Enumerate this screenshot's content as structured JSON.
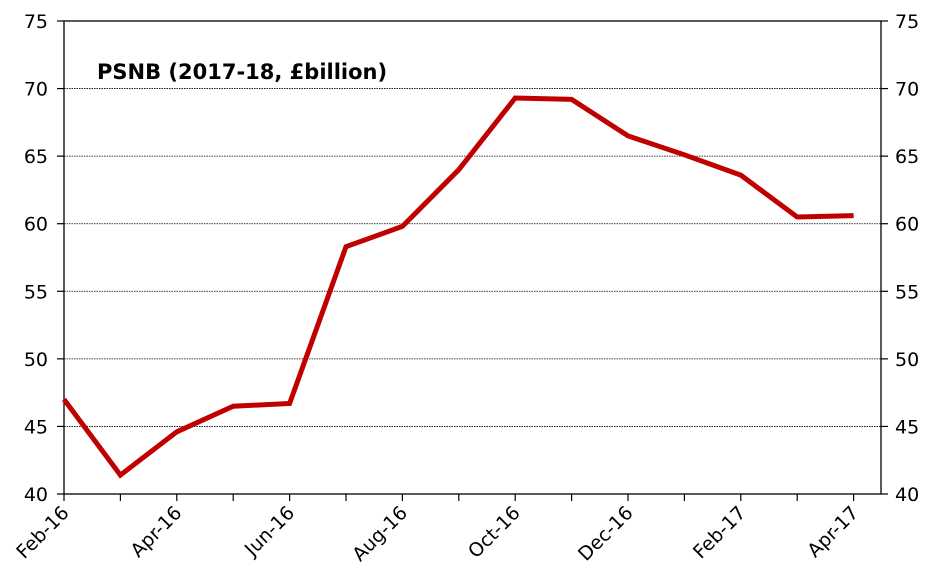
{
  "chart_data": {
    "type": "line",
    "title": "PSNB (2017-18, £billion)",
    "xlabel": "",
    "ylabel": "",
    "x": [
      "Feb-16",
      "Mar-16",
      "Apr-16",
      "May-16",
      "Jun-16",
      "Jul-16",
      "Aug-16",
      "Sep-16",
      "Oct-16",
      "Nov-16",
      "Dec-16",
      "Jan-17",
      "Feb-17",
      "Mar-17",
      "Apr-17"
    ],
    "x_tick_labels": [
      "Feb-16",
      "Apr-16",
      "Jun-16",
      "Aug-16",
      "Oct-16",
      "Dec-16",
      "Feb-17",
      "Apr-17"
    ],
    "series": [
      {
        "values": [
          47.0,
          41.4,
          44.6,
          46.5,
          46.7,
          58.3,
          59.8,
          64.0,
          69.3,
          69.2,
          66.5,
          65.1,
          63.6,
          60.5,
          60.6
        ],
        "color": "#c00000"
      }
    ],
    "ylim": [
      40,
      75
    ],
    "y_ticks": [
      "40",
      "45",
      "50",
      "55",
      "60",
      "65",
      "70",
      "75"
    ],
    "y_axis_right": true,
    "grid": "horizontal",
    "legend": "none"
  }
}
